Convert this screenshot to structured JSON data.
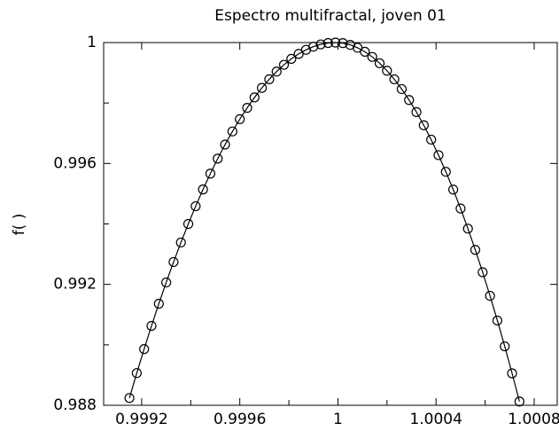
{
  "chart_data": {
    "type": "line",
    "title": "Espectro multifractal, joven 01",
    "y_label": "f( )",
    "xlim": [
      0.999045,
      1.000894
    ],
    "ylim": [
      0.988,
      1
    ],
    "xticks": [
      0.9992,
      0.9996,
      1,
      1.0004,
      1.0008
    ],
    "xticks_minor": [
      0.9994,
      0.9998,
      1.0002,
      1.0006
    ],
    "yticks": [
      0.988,
      0.992,
      0.996,
      1
    ],
    "yticks_minor": [
      0.99,
      0.994,
      0.998
    ],
    "grid": false,
    "series": [
      {
        "color": "#000000",
        "marker": "circle",
        "x": [
          0.99915,
          0.99918,
          0.99921,
          0.99924,
          0.99927,
          0.9993,
          0.99933,
          0.99936,
          0.99939,
          0.99942,
          0.99945,
          0.99948,
          0.99951,
          0.99954,
          0.99957,
          0.9996,
          0.99963,
          0.99966,
          0.99969,
          0.99972,
          0.99975,
          0.99978,
          0.99981,
          0.99984,
          0.99987,
          0.9999,
          0.99993,
          0.99996,
          0.99999,
          1.00002,
          1.00005,
          1.00008,
          1.00011,
          1.00014,
          1.00017,
          1.0002,
          1.00023,
          1.00026,
          1.00029,
          1.00032,
          1.00035,
          1.00038,
          1.00041,
          1.00044,
          1.00047,
          1.0005,
          1.00053,
          1.00056,
          1.00059,
          1.00062,
          1.00065,
          1.00068,
          1.00071,
          1.00074
        ],
        "values": [
          0.98824,
          0.989065,
          0.98986,
          0.990625,
          0.99136,
          0.992065,
          0.99274,
          0.993385,
          0.994,
          0.994585,
          0.99514,
          0.995665,
          0.99616,
          0.996625,
          0.99706,
          0.997465,
          0.99784,
          0.998185,
          0.9985,
          0.998785,
          0.99904,
          0.999265,
          0.99946,
          0.999625,
          0.99976,
          0.999865,
          0.99994,
          0.999985,
          1,
          0.999981,
          0.999924,
          0.999829,
          0.999696,
          0.999525,
          0.999316,
          0.999069,
          0.998784,
          0.998461,
          0.9981,
          0.997701,
          0.997264,
          0.996789,
          0.996276,
          0.995725,
          0.995136,
          0.994509,
          0.993844,
          0.993141,
          0.9924,
          0.991621,
          0.990804,
          0.989949,
          0.989056,
          0.988125
        ]
      }
    ]
  }
}
